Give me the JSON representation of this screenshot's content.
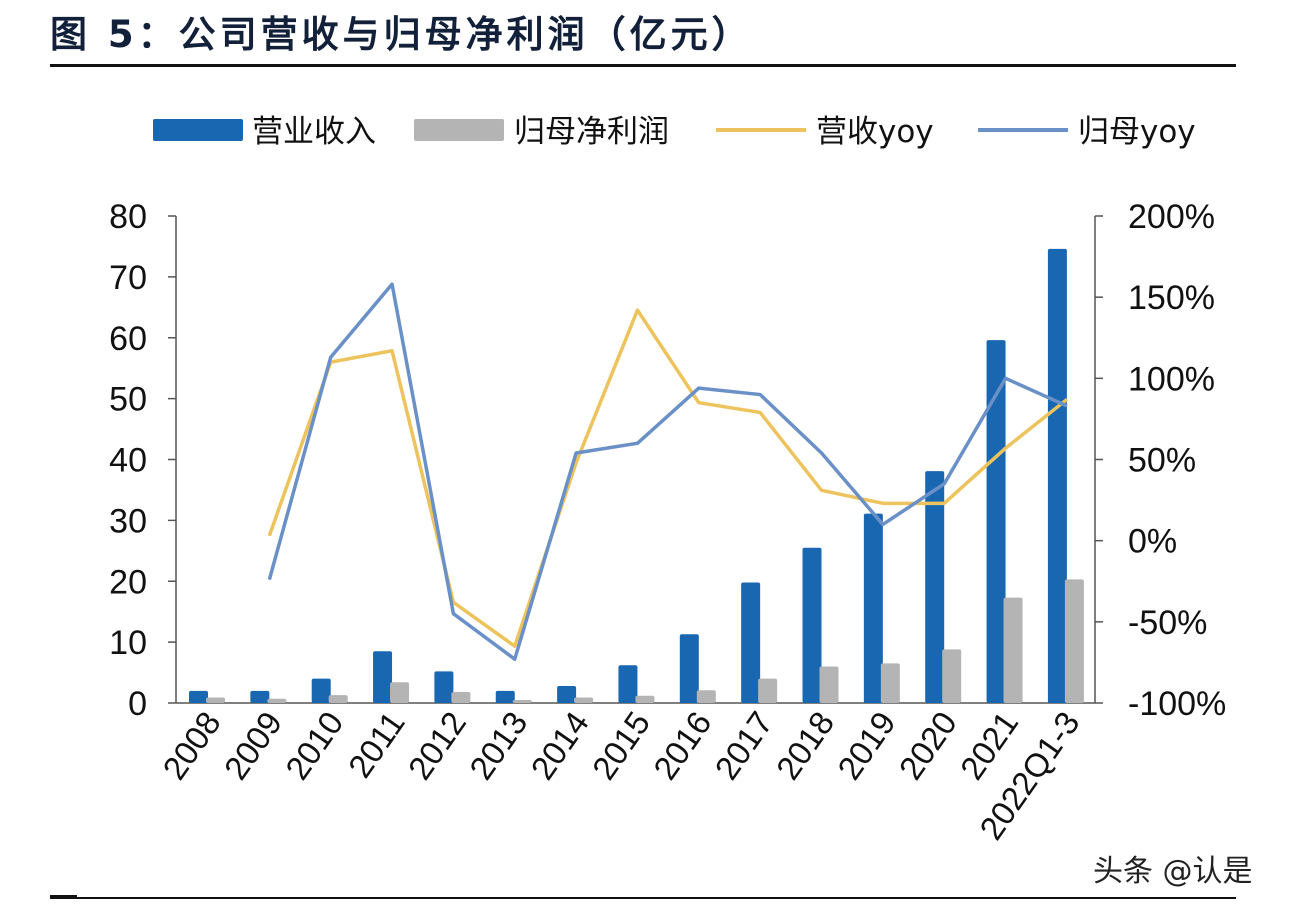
{
  "header": {
    "title": "图 5：公司营收与归母净利润（亿元）"
  },
  "watermark": "头条 @认是",
  "colors": {
    "revenue": "#1967b0",
    "profit": "#b4b4b4",
    "revenue_yoy": "#ecc35c",
    "profit_yoy": "#6a90c8",
    "axis": "#555555",
    "text": "#111111"
  },
  "chart_data": {
    "type": "bar",
    "title": "公司营收与归母净利润（亿元）",
    "xlabel": "",
    "ylabel": "",
    "categories": [
      "2008",
      "2009",
      "2010",
      "2011",
      "2012",
      "2013",
      "2014",
      "2015",
      "2016",
      "2017",
      "2018",
      "2019",
      "2020",
      "2021",
      "2022Q1-3"
    ],
    "series": [
      {
        "name": "营业收入",
        "type": "bar",
        "axis": "left",
        "values": [
          2.0,
          2.0,
          4.0,
          8.5,
          5.2,
          2.0,
          2.8,
          6.2,
          11.3,
          19.8,
          25.5,
          31.1,
          38.1,
          59.6,
          74.6
        ]
      },
      {
        "name": "归母净利润",
        "type": "bar",
        "axis": "left",
        "values": [
          0.9,
          0.7,
          1.3,
          3.4,
          1.8,
          0.5,
          0.9,
          1.2,
          2.1,
          4.0,
          6.0,
          6.5,
          8.8,
          17.3,
          20.3
        ]
      },
      {
        "name": "营收yoy",
        "type": "line",
        "axis": "right",
        "unit": "%",
        "values": [
          null,
          3,
          110,
          117,
          -38,
          -65,
          48,
          142,
          85,
          79,
          31,
          23,
          23,
          57,
          87
        ]
      },
      {
        "name": "归母yoy",
        "type": "line",
        "axis": "right",
        "unit": "%",
        "values": [
          null,
          -24,
          113,
          158,
          -45,
          -73,
          54,
          60,
          94,
          90,
          54,
          10,
          35,
          100,
          83
        ]
      }
    ],
    "ylim": [
      0,
      80
    ],
    "yticks": [
      "0",
      "10",
      "20",
      "30",
      "40",
      "50",
      "60",
      "70",
      "80"
    ],
    "y2lim": [
      -100,
      200
    ],
    "y2ticks": [
      "-100%",
      "-50%",
      "0%",
      "50%",
      "100%",
      "150%",
      "200%"
    ],
    "legend": {
      "position": "top",
      "entries": [
        "营业收入",
        "归母净利润",
        "营收yoy",
        "归母yoy"
      ]
    },
    "grid": false
  }
}
